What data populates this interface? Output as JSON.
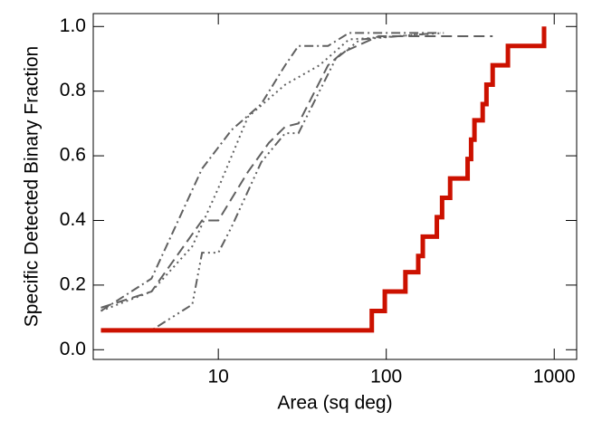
{
  "chart_data": {
    "type": "line",
    "xlabel": "Area (sq deg)",
    "ylabel": "Specific Detected Binary Fraction",
    "xscale": "log",
    "xlim": [
      1.8,
      1360
    ],
    "ylim": [
      -0.03,
      1.04
    ],
    "xticks": [
      10,
      100,
      1000
    ],
    "yticks": [
      {
        "value": 0,
        "label": "0.0"
      },
      {
        "value": 0.2,
        "label": "0.2"
      },
      {
        "value": 0.4,
        "label": "0.4"
      },
      {
        "value": 0.6,
        "label": "0.6"
      },
      {
        "value": 0.8,
        "label": "0.8"
      },
      {
        "value": 1,
        "label": "1.0"
      }
    ],
    "series": [
      {
        "color": "#606060",
        "dash": "dashdot",
        "step": false,
        "x": [
          2,
          4,
          8,
          12,
          18,
          25,
          30,
          45,
          60,
          210
        ],
        "values": [
          0.12,
          0.22,
          0.56,
          0.68,
          0.76,
          0.88,
          0.94,
          0.94,
          0.98,
          0.98
        ]
      },
      {
        "color": "#606060",
        "dash": "dotted",
        "step": false,
        "x": [
          2,
          4,
          7,
          10,
          15,
          25,
          40,
          60,
          220
        ],
        "values": [
          0.12,
          0.18,
          0.32,
          0.5,
          0.72,
          0.82,
          0.88,
          0.96,
          0.98
        ]
      },
      {
        "color": "#606060",
        "dash": "dashed",
        "step": false,
        "x": [
          2,
          4,
          8,
          10,
          15,
          20,
          25,
          30,
          45,
          55,
          90,
          430
        ],
        "values": [
          0.13,
          0.18,
          0.4,
          0.4,
          0.55,
          0.64,
          0.69,
          0.7,
          0.88,
          0.92,
          0.97,
          0.97
        ]
      },
      {
        "color": "#606060",
        "dash": "dashdotdot",
        "step": false,
        "x": [
          2,
          4,
          7,
          8,
          10,
          12,
          18,
          25,
          30,
          50,
          70,
          200
        ],
        "values": [
          0.06,
          0.06,
          0.14,
          0.3,
          0.3,
          0.38,
          0.58,
          0.67,
          0.67,
          0.9,
          0.96,
          0.98
        ]
      },
      {
        "color": "#cc1100",
        "dash": "solid",
        "step": true,
        "x": [
          2,
          82,
          98,
          130,
          155,
          165,
          200,
          215,
          240,
          305,
          320,
          335,
          375,
          395,
          430,
          530,
          870
        ],
        "values": [
          0.06,
          0.12,
          0.18,
          0.24,
          0.29,
          0.35,
          0.41,
          0.47,
          0.53,
          0.59,
          0.65,
          0.71,
          0.76,
          0.82,
          0.88,
          0.94,
          1.0
        ]
      }
    ]
  }
}
